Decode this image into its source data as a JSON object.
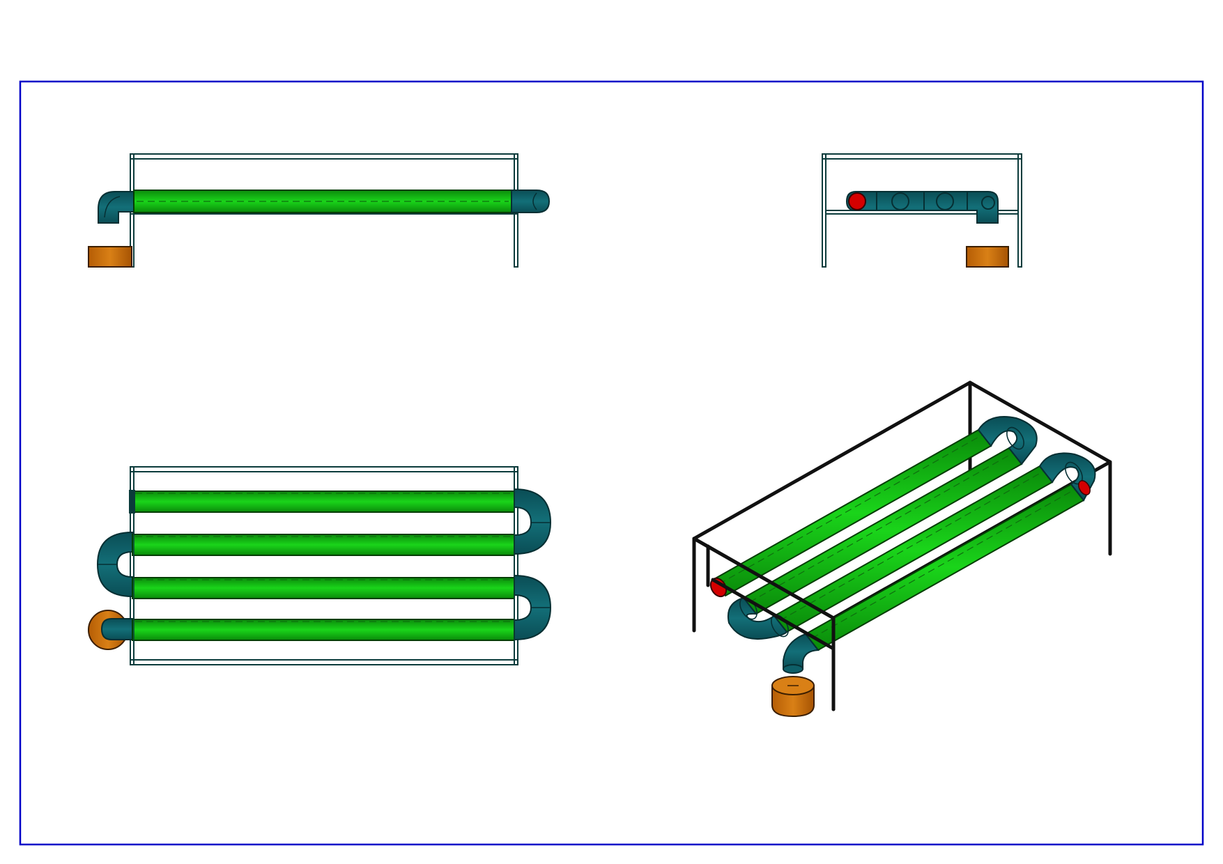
{
  "drawing": {
    "views": [
      "front",
      "side",
      "top",
      "isometric"
    ],
    "colors": {
      "border": "#0000c8",
      "frame_outline": "#0b3b3b",
      "frame_fill": "#ffffff",
      "pipe_green": "#19c219",
      "pipe_green_dark": "#0a8a0a",
      "bend_teal": "#0e5f68",
      "bend_teal_dark": "#083c42",
      "cap_red": "#d40000",
      "base_orange": "#c46a0a",
      "iso_frame": "#111111"
    },
    "parts": {
      "straight_tubes": 4,
      "u_bends": 3,
      "inlet_elbow": 1,
      "outlet_cap": 1,
      "base_block": 1
    }
  }
}
